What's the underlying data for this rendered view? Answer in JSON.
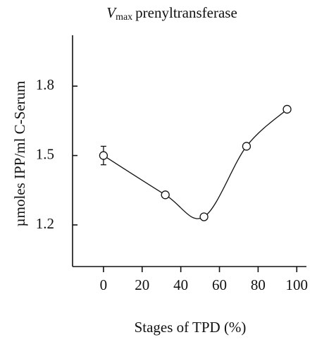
{
  "chart_data": {
    "type": "line",
    "title": [
      "V",
      "max",
      "prenyltransferase"
    ],
    "x_label": "Stages of TPD (%)",
    "y_label": "µmoles IPP/ml C-Serum",
    "x": [
      0,
      32,
      52,
      74,
      95
    ],
    "series": [
      {
        "color": "#111111",
        "values": [
          1.5,
          1.33,
          1.235,
          1.54,
          1.7
        ],
        "errors": [
          0.04,
          null,
          null,
          null,
          null
        ]
      }
    ],
    "xlim": [
      -16,
      105
    ],
    "xticks": [
      0,
      20,
      40,
      60,
      80,
      100
    ],
    "ylim": [
      1.02,
      2.02
    ],
    "yticks": [
      1.2,
      1.5,
      1.8
    ],
    "grid": false,
    "smooth": true,
    "markers": "open-circle"
  }
}
